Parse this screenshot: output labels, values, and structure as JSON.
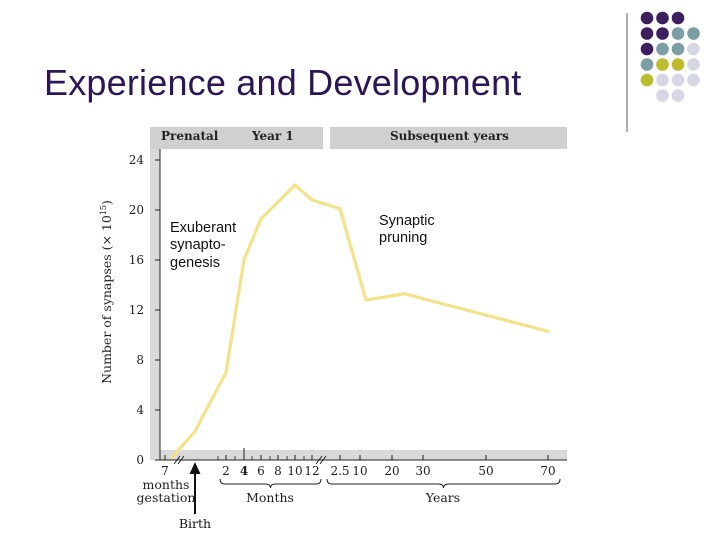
{
  "slide": {
    "title": "Experience and Development",
    "accent_colors": [
      "#3d1f5e",
      "#7a9ea4",
      "#bcbc2e",
      "#d6d6e4"
    ]
  },
  "chart_data": {
    "type": "line",
    "title": "",
    "ylabel": "Number of synapses (× 10",
    "ylabel_exponent": "15",
    "ylabel_close": ")",
    "ylim": [
      0,
      24
    ],
    "yticks": [
      0,
      4,
      8,
      12,
      16,
      20,
      24
    ],
    "period_headers": [
      "Prenatal",
      "Year 1",
      "Subsequent years"
    ],
    "x_groups": [
      {
        "label": "months gestation",
        "line1": "months",
        "line2": "gestation",
        "ticks": [
          "7"
        ]
      },
      {
        "label": "Months",
        "ticks": [
          "2",
          "4",
          "6",
          "8",
          "10",
          "12"
        ]
      },
      {
        "label": "Years",
        "ticks": [
          "2.5",
          "10",
          "20",
          "30",
          "50",
          "70"
        ]
      }
    ],
    "series": [
      {
        "name": "Synapses",
        "color": "#f5e18a",
        "points": [
          {
            "x": "7 months gestation",
            "y": 0.2
          },
          {
            "x": "birth (9 months gestation)",
            "y": 2.3
          },
          {
            "x": "2 months",
            "y": 7.0
          },
          {
            "x": "4 months",
            "y": 16.0
          },
          {
            "x": "6 months",
            "y": 19.3
          },
          {
            "x": "10 months",
            "y": 22.0
          },
          {
            "x": "12 months",
            "y": 20.8
          },
          {
            "x": "2.5 years",
            "y": 20.1
          },
          {
            "x": "10 years",
            "y": 12.8
          },
          {
            "x": "20 years",
            "y": 13.3
          },
          {
            "x": "30 years",
            "y": 12.8
          },
          {
            "x": "70 years",
            "y": 10.3
          }
        ]
      }
    ],
    "annotations": [
      {
        "text": "Exuberant synapto- genesis",
        "lines": [
          "Exuberant",
          "synapto-",
          "genesis"
        ]
      },
      {
        "text": "Synaptic pruning",
        "lines": [
          "Synaptic",
          "pruning"
        ]
      },
      {
        "text": "Birth"
      }
    ]
  }
}
